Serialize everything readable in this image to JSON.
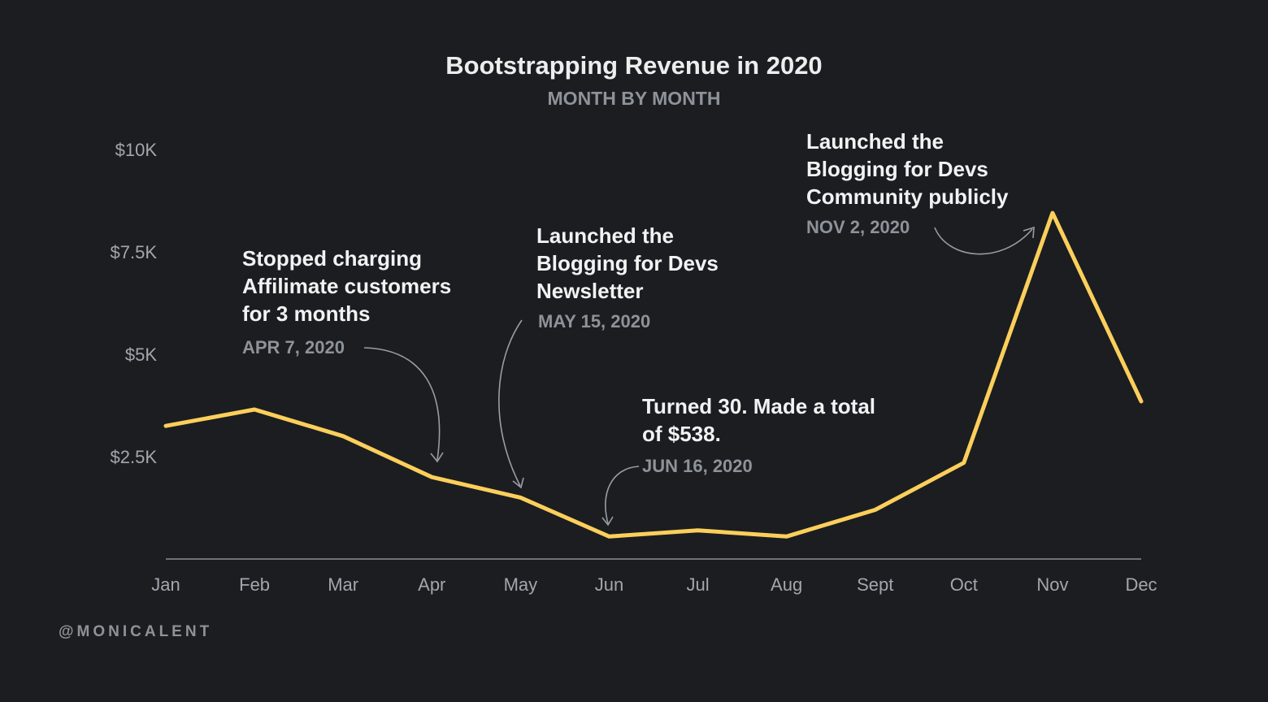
{
  "chart_data": {
    "type": "line",
    "title": "Bootstrapping Revenue in 2020",
    "subtitle": "MONTH BY MONTH",
    "categories": [
      "Jan",
      "Feb",
      "Mar",
      "Apr",
      "May",
      "Jun",
      "Jul",
      "Aug",
      "Sept",
      "Oct",
      "Nov",
      "Dec"
    ],
    "series": [
      {
        "values": [
          3250,
          3650,
          3000,
          2000,
          1500,
          550,
          700,
          550,
          1200,
          2350,
          8450,
          3850
        ]
      }
    ],
    "ylim": [
      0,
      10000
    ],
    "yticks": [
      {
        "value": 2500,
        "label": "$2.5K"
      },
      {
        "value": 5000,
        "label": "$5K"
      },
      {
        "value": 7500,
        "label": "$7.5K"
      },
      {
        "value": 10000,
        "label": "$10K"
      }
    ],
    "line_color": "#fccf5b",
    "grid": false,
    "annotations": [
      {
        "lines": [
          "Stopped charging",
          "Affilimate customers",
          "for 3 months"
        ],
        "date": "APR 7, 2020"
      },
      {
        "lines": [
          "Launched the",
          "Blogging for Devs",
          "Newsletter"
        ],
        "date": "MAY 15, 2020"
      },
      {
        "lines": [
          "Turned 30. Made a total",
          "of $538."
        ],
        "date": "JUN 16, 2020"
      },
      {
        "lines": [
          "Launched the",
          "Blogging for Devs",
          "Community publicly"
        ],
        "date": "NOV 2, 2020"
      }
    ]
  },
  "credit": "@MONICALENT"
}
